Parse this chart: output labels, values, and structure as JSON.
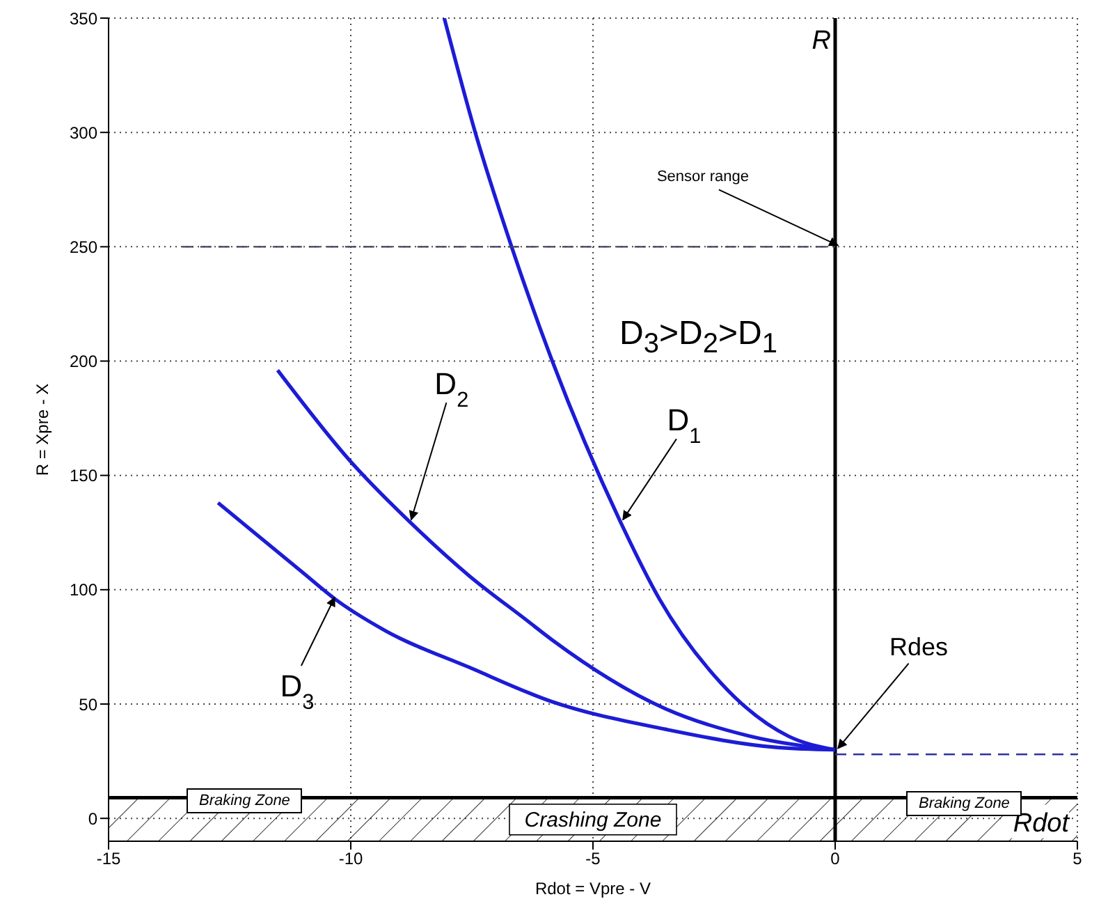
{
  "chart_data": {
    "type": "line",
    "xlabel": "Rdot  = Vpre - V",
    "ylabel": "R = Xpre - X",
    "xlim": [
      -15,
      5
    ],
    "xticks": [
      -15,
      -10,
      -5,
      0,
      5
    ],
    "ylim": [
      -10,
      350
    ],
    "yticks": [
      0,
      50,
      100,
      150,
      200,
      250,
      300,
      350
    ],
    "grid": true,
    "marker": "none",
    "series": [
      {
        "color": "#1c1cd6",
        "x": [
          -8.07,
          -7.43,
          -6.68,
          -5.84,
          -4.44,
          -3.63,
          -2.35,
          -0.97,
          0
        ],
        "values": [
          350,
          300,
          250,
          200,
          130,
          96,
          59,
          36,
          30
        ]
      },
      {
        "color": "#1c1cd6",
        "x": [
          -11.51,
          -10,
          -8.7,
          -7.55,
          -6.39,
          -5.84,
          -3.51,
          -1.77,
          0
        ],
        "values": [
          196,
          156,
          128,
          106,
          87,
          78,
          48,
          36,
          30
        ]
      },
      {
        "color": "#1c1cd6",
        "x": [
          -12.74,
          -11.02,
          -10.33,
          -9.28,
          -7.55,
          -5.84,
          -3.51,
          -1.19,
          0
        ],
        "values": [
          138,
          108,
          96,
          82,
          66,
          51,
          39,
          31,
          30
        ]
      },
      {
        "color": "#404060",
        "line_style": "dashed",
        "x": [
          -13.48,
          0
        ],
        "values": [
          250,
          250
        ]
      },
      {
        "color": "#3030a0",
        "line_style": "dashed",
        "x": [
          0,
          5
        ],
        "values": [
          28,
          28
        ]
      }
    ],
    "ref_lines": [
      {
        "axis": "x",
        "value": 0,
        "label": "R",
        "color": "#000000"
      },
      {
        "axis": "y",
        "value": 9,
        "label": "Rdot",
        "color": "#000000"
      }
    ],
    "bands": [
      {
        "axis": "y",
        "from": -10,
        "to": 9,
        "label": "Crashing Zone",
        "color": "#000000"
      }
    ],
    "annotations": [
      {
        "text": "Sensor range",
        "x": 0,
        "y": 250
      },
      "D$_{3}$>D$_{2}$>D$_{1}$",
      {
        "text": "D$_{1}$",
        "x": -4.44,
        "y": 130
      },
      {
        "text": "D$_{2}$",
        "x": -8.81,
        "y": 130
      },
      {
        "text": "D$_{3}$",
        "x": -10.39,
        "y": 96
      },
      {
        "text": "Rdes",
        "x": 0,
        "y": 30
      },
      "Braking Zone",
      "Braking Zone"
    ]
  }
}
